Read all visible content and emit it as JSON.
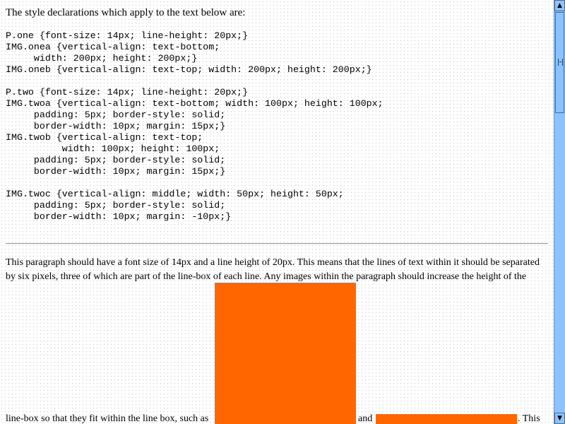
{
  "intro": "The style declarations which apply to the text below are:",
  "code_blocks": [
    "P.one {font-size: 14px; line-height: 20px;}\nIMG.onea {vertical-align: text-bottom;\n     width: 200px; height: 200px;}\nIMG.oneb {vertical-align: text-top; width: 200px; height: 200px;}",
    "P.two {font-size: 14px; line-height: 20px;}\nIMG.twoa {vertical-align: text-bottom; width: 100px; height: 100px;\n     padding: 5px; border-style: solid;\n     border-width: 10px; margin: 15px;}\nIMG.twob {vertical-align: text-top;\n          width: 100px; height: 100px;\n     padding: 5px; border-style: solid;\n     border-width: 10px; margin: 15px;}",
    "IMG.twoc {vertical-align: middle; width: 50px; height: 50px;\n     padding: 5px; border-style: solid;\n     border-width: 10px; margin: -10px;}"
  ],
  "paragraph": {
    "line1": "This paragraph should have a font size of 14px and a line height of 20px. This means that the lines of text within it should be separated",
    "line2": "by six pixels, three of which are part of the line-box of each line. Any images within the paragraph should increase the height of the",
    "line3_start": "line-box so that they fit within the line box, such as",
    "line3_mid": "and",
    "line3_end": ". This"
  },
  "colors": {
    "image_fill": "#ff6600",
    "scrollbar": "#8cc3ff"
  },
  "scrollbar": {
    "up_icon": "up-arrow",
    "down_icon": "down-arrow"
  }
}
